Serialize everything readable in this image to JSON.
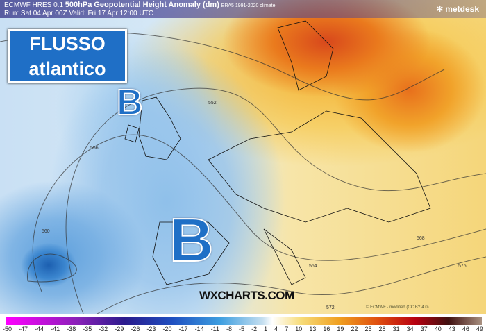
{
  "header": {
    "model": "ECMWF HRES 0.1",
    "field": "500hPa Geopotential Height Anomaly (dm)",
    "climate": "ERA5 1991-2020 climate",
    "run": "Run: Sat 04 Apr 00Z Valid: Fri 17 Apr 12:00 UTC"
  },
  "brand": {
    "name": "metdesk",
    "icon": "snowflake-icon"
  },
  "overlay": {
    "line1": "FLUSSO",
    "line2": "atlantico",
    "low1": "B",
    "low2": "B",
    "watermark": "WXCHARTS.COM"
  },
  "credit": "© ECMWF · modified (CC BY 4.0)",
  "contour_labels": [
    "552",
    "556",
    "560",
    "564",
    "568",
    "572",
    "576"
  ],
  "colorbar": {
    "ticks": [
      "-50",
      "-47",
      "-44",
      "-41",
      "-38",
      "-35",
      "-32",
      "-29",
      "-26",
      "-23",
      "-20",
      "-17",
      "-14",
      "-11",
      "-8",
      "-5",
      "-2",
      "1",
      "4",
      "7",
      "10",
      "13",
      "16",
      "19",
      "22",
      "25",
      "28",
      "31",
      "34",
      "37",
      "40",
      "43",
      "46",
      "49"
    ]
  }
}
